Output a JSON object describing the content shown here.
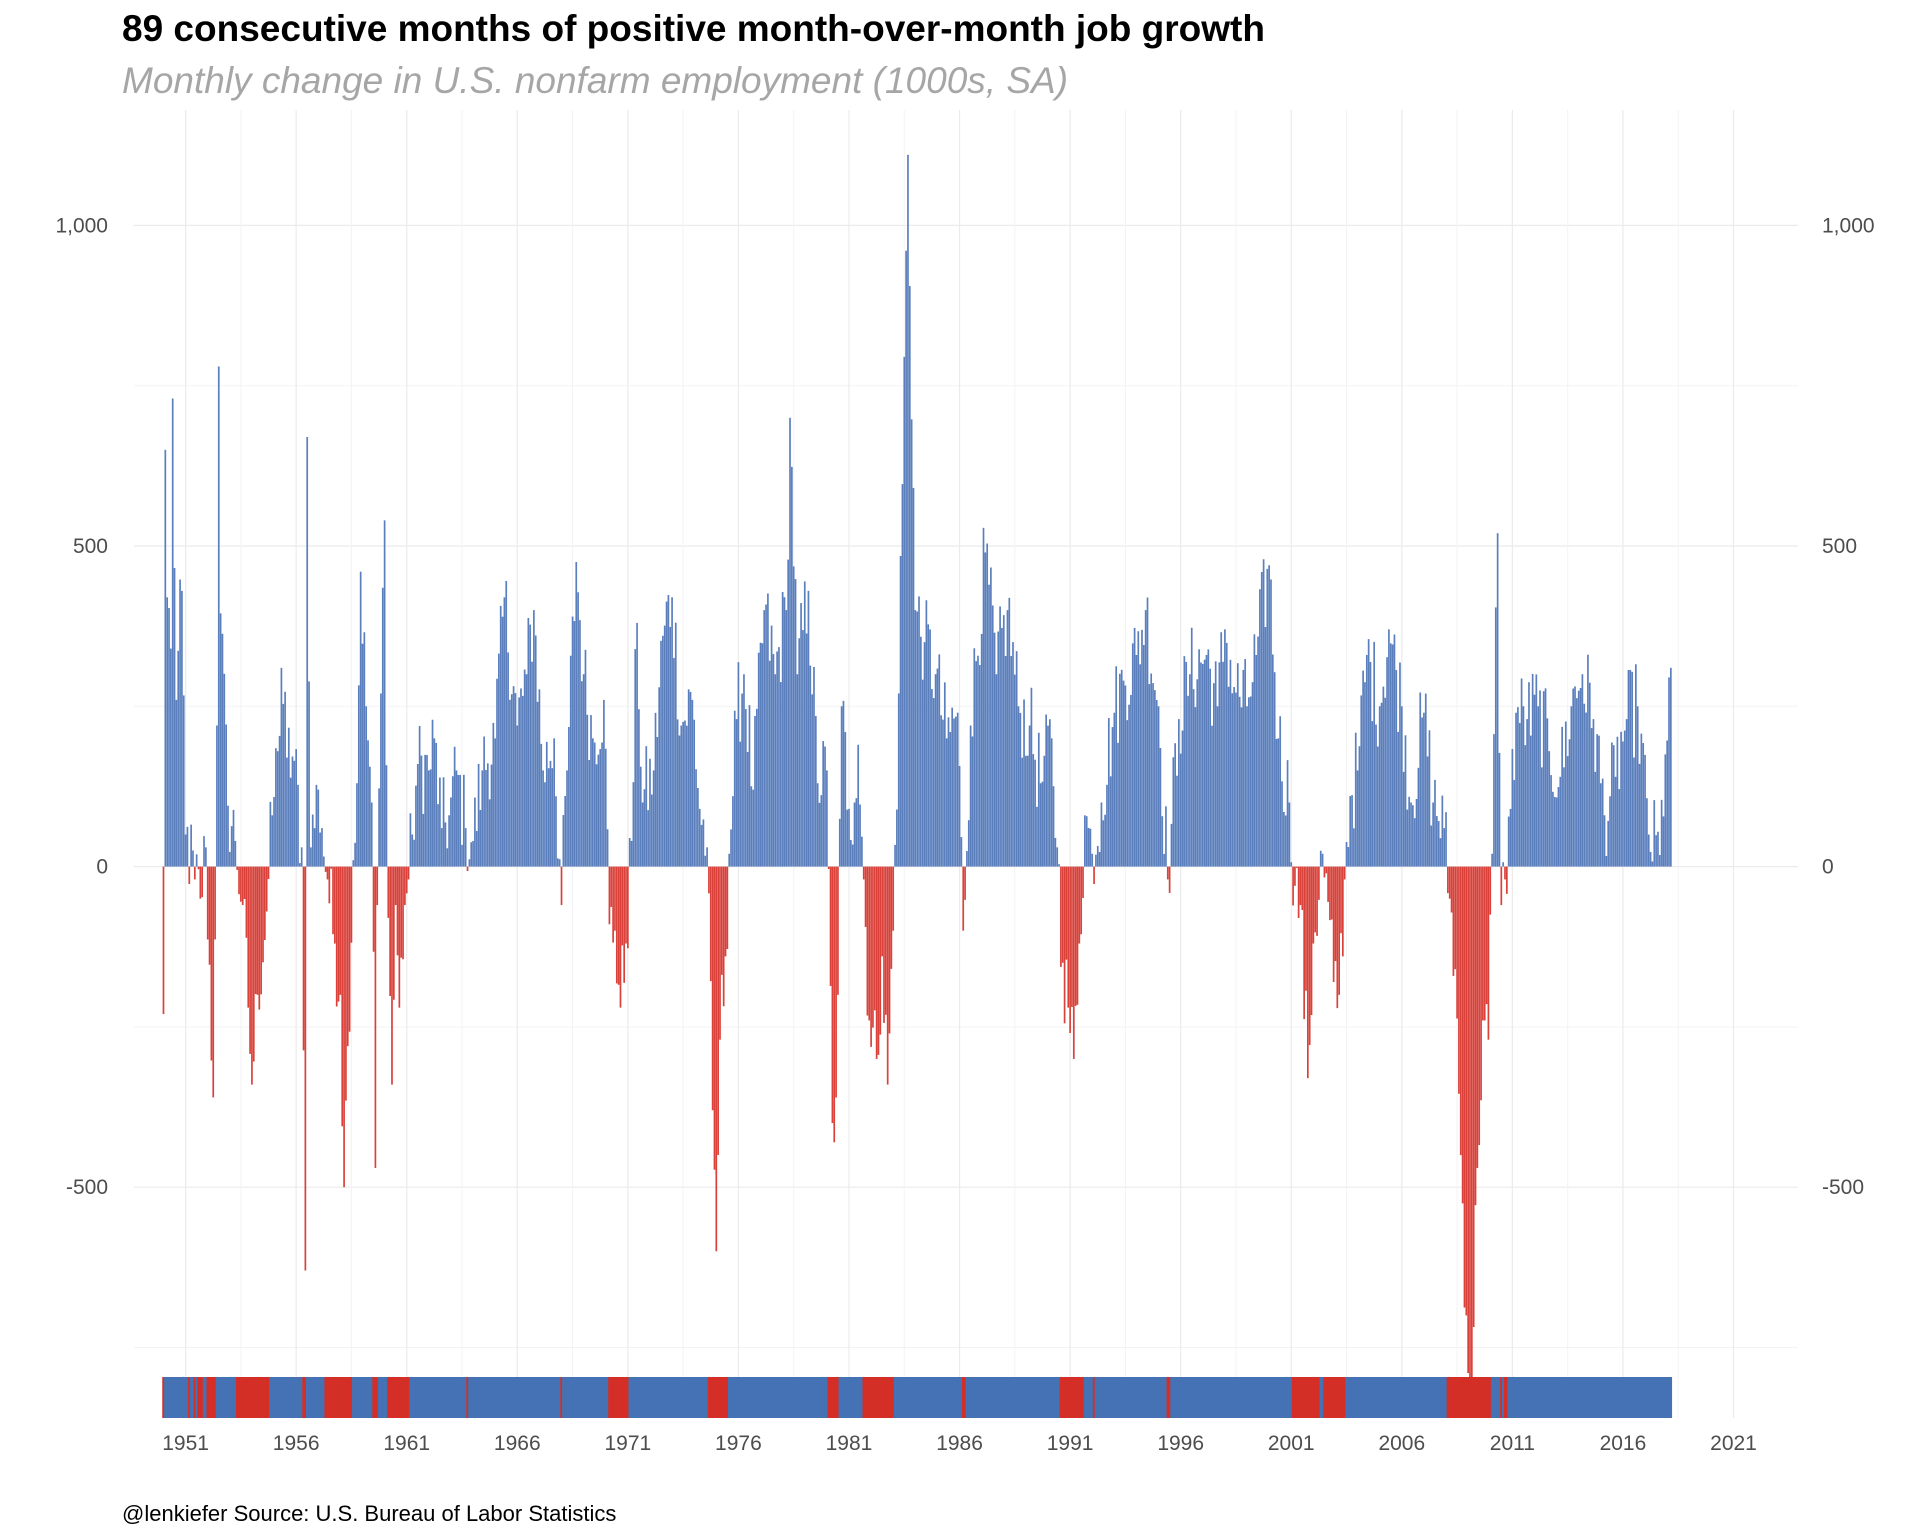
{
  "title": "89 consecutive months of positive month-over-month job growth",
  "subtitle": "Monthly change in U.S. nonfarm employment (1000s, SA)",
  "caption": "@lenkiefer Source: U.S. Bureau of Labor Statistics",
  "colors": {
    "positive": "#5b7fbd",
    "negative": "#d9413a",
    "strip_positive": "#4472b4",
    "strip_negative": "#d42f26",
    "grid": "#ebebeb"
  },
  "chart_data": {
    "type": "bar",
    "x_domain": [
      "1948-09",
      "2023-12"
    ],
    "ylim": [
      -860,
      1180
    ],
    "y_ticks": [
      {
        "value": 1000,
        "label": "1,000"
      },
      {
        "value": 500,
        "label": "500"
      },
      {
        "value": 0,
        "label": "0"
      },
      {
        "value": -500,
        "label": "-500"
      }
    ],
    "x_ticks": [
      "1951",
      "1956",
      "1961",
      "1966",
      "1971",
      "1976",
      "1981",
      "1986",
      "1991",
      "1996",
      "2001",
      "2006",
      "2011",
      "2016",
      "2021"
    ],
    "series_start": "1950-01",
    "series_end": "2018-03",
    "anchors": [
      [
        "1950-01",
        -230
      ],
      [
        "1950-02",
        650
      ],
      [
        "1950-03",
        420
      ],
      [
        "1950-05",
        340
      ],
      [
        "1950-06",
        730
      ],
      [
        "1950-08",
        260
      ],
      [
        "1950-11",
        430
      ],
      [
        "1951-01",
        50
      ],
      [
        "1951-06",
        -20
      ],
      [
        "1951-09",
        -50
      ],
      [
        "1951-12",
        30
      ],
      [
        "1952-04",
        -360
      ],
      [
        "1952-06",
        220
      ],
      [
        "1952-07",
        780
      ],
      [
        "1952-08",
        395
      ],
      [
        "1952-12",
        95
      ],
      [
        "1953-04",
        40
      ],
      [
        "1953-08",
        -60
      ],
      [
        "1953-11",
        -220
      ],
      [
        "1954-01",
        -340
      ],
      [
        "1954-04",
        -200
      ],
      [
        "1954-09",
        -70
      ],
      [
        "1954-12",
        80
      ],
      [
        "1955-03",
        180
      ],
      [
        "1955-05",
        310
      ],
      [
        "1955-08",
        170
      ],
      [
        "1955-12",
        165
      ],
      [
        "1956-04",
        30
      ],
      [
        "1956-06",
        -630
      ],
      [
        "1956-07",
        670
      ],
      [
        "1956-09",
        30
      ],
      [
        "1957-01",
        120
      ],
      [
        "1957-03",
        60
      ],
      [
        "1957-06",
        -20
      ],
      [
        "1957-10",
        -120
      ],
      [
        "1958-01",
        -200
      ],
      [
        "1958-03",
        -500
      ],
      [
        "1958-05",
        -280
      ],
      [
        "1958-08",
        10
      ],
      [
        "1958-10",
        130
      ],
      [
        "1958-12",
        460
      ],
      [
        "1959-03",
        250
      ],
      [
        "1959-06",
        100
      ],
      [
        "1959-08",
        -470
      ],
      [
        "1959-09",
        -60
      ],
      [
        "1959-11",
        270
      ],
      [
        "1960-01",
        540
      ],
      [
        "1960-03",
        -80
      ],
      [
        "1960-05",
        -340
      ],
      [
        "1960-07",
        -60
      ],
      [
        "1960-09",
        -220
      ],
      [
        "1960-12",
        -60
      ],
      [
        "1961-02",
        -20
      ],
      [
        "1961-04",
        50
      ],
      [
        "1961-07",
        160
      ],
      [
        "1962-01",
        150
      ],
      [
        "1962-04",
        200
      ],
      [
        "1962-08",
        60
      ],
      [
        "1962-12",
        80
      ],
      [
        "1963-04",
        150
      ],
      [
        "1963-09",
        60
      ],
      [
        "1964-01",
        40
      ],
      [
        "1964-06",
        150
      ],
      [
        "1965-01",
        200
      ],
      [
        "1965-06",
        420
      ],
      [
        "1966-01",
        220
      ],
      [
        "1966-06",
        300
      ],
      [
        "1966-10",
        400
      ],
      [
        "1967-03",
        150
      ],
      [
        "1967-09",
        200
      ],
      [
        "1968-01",
        -60
      ],
      [
        "1968-04",
        150
      ],
      [
        "1968-09",
        475
      ],
      [
        "1969-01",
        300
      ],
      [
        "1969-06",
        200
      ],
      [
        "1969-12",
        260
      ],
      [
        "1970-03",
        -90
      ],
      [
        "1970-06",
        -100
      ],
      [
        "1970-09",
        -220
      ],
      [
        "1970-12",
        -120
      ],
      [
        "1971-03",
        40
      ],
      [
        "1971-06",
        380
      ],
      [
        "1971-09",
        100
      ],
      [
        "1972-03",
        150
      ],
      [
        "1972-08",
        360
      ],
      [
        "1973-01",
        420
      ],
      [
        "1973-06",
        220
      ],
      [
        "1973-12",
        260
      ],
      [
        "1974-04",
        90
      ],
      [
        "1974-08",
        30
      ],
      [
        "1974-11",
        -380
      ],
      [
        "1975-01",
        -600
      ],
      [
        "1975-03",
        -270
      ],
      [
        "1975-06",
        -140
      ],
      [
        "1975-08",
        20
      ],
      [
        "1975-12",
        230
      ],
      [
        "1976-04",
        300
      ],
      [
        "1976-09",
        120
      ],
      [
        "1977-03",
        400
      ],
      [
        "1977-09",
        300
      ],
      [
        "1978-03",
        400
      ],
      [
        "1978-05",
        700
      ],
      [
        "1978-09",
        300
      ],
      [
        "1979-03",
        430
      ],
      [
        "1979-08",
        130
      ],
      [
        "1980-01",
        150
      ],
      [
        "1980-04",
        -400
      ],
      [
        "1980-05",
        -430
      ],
      [
        "1980-07",
        -200
      ],
      [
        "1980-09",
        250
      ],
      [
        "1981-01",
        90
      ],
      [
        "1981-04",
        100
      ],
      [
        "1981-06",
        190
      ],
      [
        "1981-09",
        -20
      ],
      [
        "1981-12",
        -240
      ],
      [
        "1982-04",
        -300
      ],
      [
        "1982-07",
        -140
      ],
      [
        "1982-10",
        -340
      ],
      [
        "1983-01",
        -100
      ],
      [
        "1983-04",
        270
      ],
      [
        "1983-09",
        1110
      ],
      [
        "1984-01",
        400
      ],
      [
        "1984-06",
        350
      ],
      [
        "1984-12",
        300
      ],
      [
        "1985-06",
        200
      ],
      [
        "1985-12",
        240
      ],
      [
        "1986-03",
        -100
      ],
      [
        "1986-07",
        220
      ],
      [
        "1987-03",
        490
      ],
      [
        "1987-09",
        300
      ],
      [
        "1988-03",
        400
      ],
      [
        "1988-09",
        250
      ],
      [
        "1989-03",
        220
      ],
      [
        "1989-09",
        130
      ],
      [
        "1990-03",
        200
      ],
      [
        "1990-06",
        30
      ],
      [
        "1990-09",
        -150
      ],
      [
        "1990-12",
        -220
      ],
      [
        "1991-03",
        -300
      ],
      [
        "1991-06",
        -120
      ],
      [
        "1991-09",
        80
      ],
      [
        "1992-01",
        20
      ],
      [
        "1992-06",
        100
      ],
      [
        "1993-01",
        240
      ],
      [
        "1993-06",
        290
      ],
      [
        "1994-01",
        330
      ],
      [
        "1994-06",
        400
      ],
      [
        "1995-01",
        250
      ],
      [
        "1995-06",
        -20
      ],
      [
        "1995-12",
        230
      ],
      [
        "1996-06",
        300
      ],
      [
        "1997-03",
        330
      ],
      [
        "1997-09",
        250
      ],
      [
        "1998-01",
        370
      ],
      [
        "1998-06",
        280
      ],
      [
        "1999-01",
        250
      ],
      [
        "1999-06",
        330
      ],
      [
        "2000-01",
        470
      ],
      [
        "2000-06",
        200
      ],
      [
        "2000-12",
        100
      ],
      [
        "2001-03",
        -30
      ],
      [
        "2001-06",
        -60
      ],
      [
        "2001-10",
        -330
      ],
      [
        "2002-01",
        -120
      ],
      [
        "2002-06",
        20
      ],
      [
        "2002-12",
        -180
      ],
      [
        "2003-03",
        -200
      ],
      [
        "2003-06",
        -20
      ],
      [
        "2003-09",
        110
      ],
      [
        "2004-01",
        150
      ],
      [
        "2004-06",
        330
      ],
      [
        "2005-01",
        250
      ],
      [
        "2005-06",
        370
      ],
      [
        "2006-01",
        250
      ],
      [
        "2006-06",
        100
      ],
      [
        "2007-01",
        240
      ],
      [
        "2007-06",
        100
      ],
      [
        "2007-12",
        60
      ],
      [
        "2008-03",
        -50
      ],
      [
        "2008-06",
        -160
      ],
      [
        "2008-09",
        -450
      ],
      [
        "2008-12",
        -700
      ],
      [
        "2009-01",
        -790
      ],
      [
        "2009-03",
        -800
      ],
      [
        "2009-06",
        -470
      ],
      [
        "2009-09",
        -240
      ],
      [
        "2009-12",
        -270
      ],
      [
        "2010-02",
        20
      ],
      [
        "2010-05",
        520
      ],
      [
        "2010-07",
        -60
      ],
      [
        "2010-09",
        -20
      ],
      [
        "2010-12",
        90
      ],
      [
        "2011-03",
        240
      ],
      [
        "2011-09",
        230
      ],
      [
        "2012-03",
        250
      ],
      [
        "2012-09",
        180
      ],
      [
        "2013-03",
        140
      ],
      [
        "2013-09",
        250
      ],
      [
        "2014-03",
        300
      ],
      [
        "2014-09",
        230
      ],
      [
        "2015-03",
        80
      ],
      [
        "2015-09",
        140
      ],
      [
        "2016-03",
        230
      ],
      [
        "2016-09",
        250
      ],
      [
        "2017-03",
        50
      ],
      [
        "2017-09",
        18
      ],
      [
        "2017-12",
        175
      ],
      [
        "2018-03",
        310
      ]
    ]
  }
}
